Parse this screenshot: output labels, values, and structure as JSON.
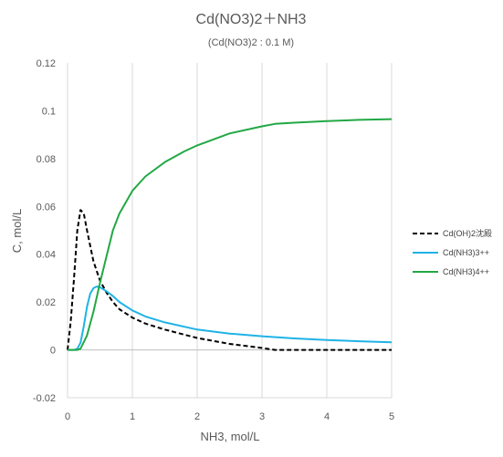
{
  "chart_data": {
    "type": "line",
    "title": "Cd(NO3)2＋NH3",
    "subtitle": "(Cd(NO3)2 : 0.1 M)",
    "xlabel": "NH3, mol/L",
    "ylabel": "C, mol/L",
    "xlim": [
      0,
      5
    ],
    "ylim": [
      -0.02,
      0.12
    ],
    "xticks": [
      0,
      1,
      2,
      3,
      4,
      5
    ],
    "xtick_labels": [
      "0",
      "1",
      "2",
      "3",
      "4",
      "5"
    ],
    "yticks": [
      -0.02,
      0,
      0.02,
      0.04,
      0.06,
      0.08,
      0.1,
      0.12
    ],
    "ytick_labels": [
      "-0.02",
      "0",
      "0.02",
      "0.04",
      "0.06",
      "0.08",
      "0.1",
      "0.12"
    ],
    "grid": "vertical",
    "legend_position": "right",
    "series": [
      {
        "name": "Cd(OH)2沈殿",
        "color": "#000000",
        "dash": "dashed",
        "points": [
          [
            0,
            0
          ],
          [
            0.05,
            0.012
          ],
          [
            0.1,
            0.03
          ],
          [
            0.15,
            0.05
          ],
          [
            0.2,
            0.0585
          ],
          [
            0.25,
            0.057
          ],
          [
            0.3,
            0.05
          ],
          [
            0.4,
            0.037
          ],
          [
            0.5,
            0.029
          ],
          [
            0.6,
            0.024
          ],
          [
            0.7,
            0.02
          ],
          [
            0.8,
            0.017
          ],
          [
            1.0,
            0.0135
          ],
          [
            1.2,
            0.011
          ],
          [
            1.5,
            0.0085
          ],
          [
            2.0,
            0.005
          ],
          [
            2.5,
            0.0025
          ],
          [
            3.0,
            0.0008
          ],
          [
            3.2,
            0
          ],
          [
            4.0,
            0
          ],
          [
            5.0,
            0
          ]
        ]
      },
      {
        "name": "Cd(NH3)3++",
        "color": "#1fb3e6",
        "dash": "solid",
        "points": [
          [
            0,
            0
          ],
          [
            0.1,
            0
          ],
          [
            0.15,
            0.0005
          ],
          [
            0.2,
            0.003
          ],
          [
            0.25,
            0.01
          ],
          [
            0.3,
            0.018
          ],
          [
            0.35,
            0.0235
          ],
          [
            0.4,
            0.0258
          ],
          [
            0.45,
            0.0265
          ],
          [
            0.5,
            0.0262
          ],
          [
            0.6,
            0.0245
          ],
          [
            0.7,
            0.0225
          ],
          [
            0.8,
            0.02
          ],
          [
            1.0,
            0.0165
          ],
          [
            1.2,
            0.014
          ],
          [
            1.5,
            0.0115
          ],
          [
            2.0,
            0.0085
          ],
          [
            2.5,
            0.0068
          ],
          [
            3.0,
            0.0057
          ],
          [
            3.5,
            0.0048
          ],
          [
            4.0,
            0.0041
          ],
          [
            4.5,
            0.0036
          ],
          [
            5.0,
            0.0032
          ]
        ]
      },
      {
        "name": "Cd(NH3)4++",
        "color": "#22a845",
        "dash": "solid",
        "points": [
          [
            0,
            0
          ],
          [
            0.15,
            0
          ],
          [
            0.2,
            0.0005
          ],
          [
            0.3,
            0.006
          ],
          [
            0.4,
            0.016
          ],
          [
            0.5,
            0.028
          ],
          [
            0.6,
            0.039
          ],
          [
            0.7,
            0.05
          ],
          [
            0.8,
            0.057
          ],
          [
            1.0,
            0.0665
          ],
          [
            1.2,
            0.0725
          ],
          [
            1.5,
            0.0785
          ],
          [
            1.8,
            0.083
          ],
          [
            2.0,
            0.0855
          ],
          [
            2.5,
            0.0905
          ],
          [
            3.0,
            0.0935
          ],
          [
            3.2,
            0.0945
          ],
          [
            3.5,
            0.095
          ],
          [
            4.0,
            0.0957
          ],
          [
            4.5,
            0.0962
          ],
          [
            5.0,
            0.0965
          ]
        ]
      }
    ]
  }
}
